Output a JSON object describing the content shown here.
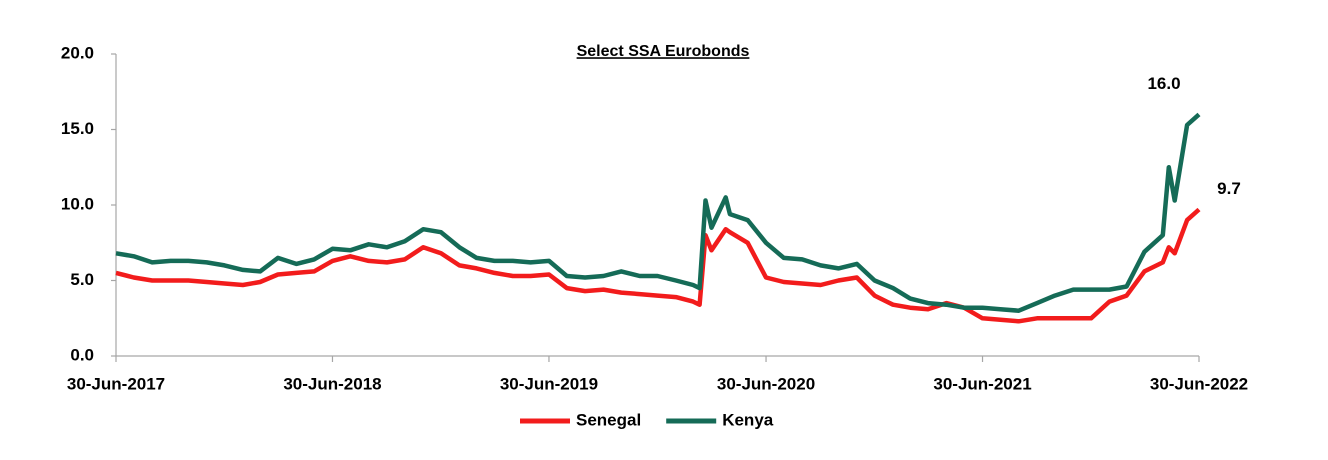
{
  "chart_data": {
    "type": "line",
    "title": "Select SSA Eurobonds",
    "x": [
      "2017-06-30",
      "2017-07-30",
      "2017-08-30",
      "2017-09-30",
      "2017-10-30",
      "2017-11-30",
      "2017-12-30",
      "2018-01-30",
      "2018-02-28",
      "2018-03-30",
      "2018-04-30",
      "2018-05-30",
      "2018-06-30",
      "2018-07-30",
      "2018-08-30",
      "2018-09-30",
      "2018-10-30",
      "2018-11-30",
      "2018-12-30",
      "2019-01-30",
      "2019-02-28",
      "2019-03-30",
      "2019-04-30",
      "2019-05-30",
      "2019-06-30",
      "2019-07-30",
      "2019-08-30",
      "2019-09-30",
      "2019-10-30",
      "2019-11-30",
      "2019-12-30",
      "2020-01-30",
      "2020-02-28",
      "2020-03-10",
      "2020-03-20",
      "2020-03-30",
      "2020-04-23",
      "2020-04-30",
      "2020-05-30",
      "2020-06-30",
      "2020-07-30",
      "2020-08-30",
      "2020-09-30",
      "2020-10-30",
      "2020-11-30",
      "2020-12-30",
      "2021-01-30",
      "2021-02-28",
      "2021-03-30",
      "2021-04-30",
      "2021-05-30",
      "2021-06-30",
      "2021-07-30",
      "2021-08-30",
      "2021-09-30",
      "2021-10-30",
      "2021-11-30",
      "2021-12-30",
      "2022-01-30",
      "2022-02-28",
      "2022-03-30",
      "2022-04-30",
      "2022-05-10",
      "2022-05-20",
      "2022-06-10",
      "2022-06-30"
    ],
    "series": [
      {
        "name": "Senegal",
        "color": "#f21c1c",
        "values": [
          5.5,
          5.2,
          5.0,
          5.0,
          5.0,
          4.9,
          4.8,
          4.7,
          4.9,
          5.4,
          5.5,
          5.6,
          6.3,
          6.6,
          6.3,
          6.2,
          6.4,
          7.2,
          6.8,
          6.0,
          5.8,
          5.5,
          5.3,
          5.3,
          5.4,
          4.5,
          4.3,
          4.4,
          4.2,
          4.1,
          4.0,
          3.9,
          3.6,
          3.4,
          8.0,
          7.0,
          8.4,
          8.2,
          7.5,
          5.2,
          4.9,
          4.8,
          4.7,
          5.0,
          5.2,
          4.0,
          3.4,
          3.2,
          3.1,
          3.5,
          3.2,
          2.5,
          2.4,
          2.3,
          2.5,
          2.5,
          2.5,
          2.5,
          3.6,
          4.0,
          5.6,
          6.2,
          7.2,
          6.8,
          9.0,
          9.7
        ],
        "value_labels": [
          null,
          null,
          null,
          null,
          null,
          null,
          null,
          null,
          null,
          null,
          null,
          null,
          null,
          null,
          null,
          null,
          null,
          null,
          null,
          null,
          null,
          null,
          null,
          null,
          null,
          null,
          null,
          null,
          null,
          null,
          null,
          null,
          null,
          null,
          null,
          null,
          null,
          null,
          null,
          null,
          null,
          null,
          null,
          null,
          null,
          null,
          null,
          null,
          null,
          null,
          null,
          null,
          null,
          null,
          null,
          null,
          null,
          null,
          null,
          null,
          null,
          null,
          null,
          null,
          null,
          "9.7"
        ]
      },
      {
        "name": "Kenya",
        "color": "#156b57",
        "values": [
          6.8,
          6.6,
          6.2,
          6.3,
          6.3,
          6.2,
          6.0,
          5.7,
          5.6,
          6.5,
          6.1,
          6.4,
          7.1,
          7.0,
          7.4,
          7.2,
          7.6,
          8.4,
          8.2,
          7.2,
          6.5,
          6.3,
          6.3,
          6.2,
          6.3,
          5.3,
          5.2,
          5.3,
          5.6,
          5.3,
          5.3,
          5.0,
          4.7,
          4.5,
          10.3,
          8.5,
          10.5,
          9.4,
          9.0,
          7.5,
          6.5,
          6.4,
          6.0,
          5.8,
          6.1,
          5.0,
          4.5,
          3.8,
          3.5,
          3.4,
          3.2,
          3.2,
          3.1,
          3.0,
          3.5,
          4.0,
          4.4,
          4.4,
          4.4,
          4.6,
          6.9,
          8.0,
          12.5,
          10.3,
          15.3,
          16.0
        ],
        "value_labels": [
          null,
          null,
          null,
          null,
          null,
          null,
          null,
          null,
          null,
          null,
          null,
          null,
          null,
          null,
          null,
          null,
          null,
          null,
          null,
          null,
          null,
          null,
          null,
          null,
          null,
          null,
          null,
          null,
          null,
          null,
          null,
          null,
          null,
          null,
          null,
          null,
          null,
          null,
          null,
          null,
          null,
          null,
          null,
          null,
          null,
          null,
          null,
          null,
          null,
          null,
          null,
          null,
          null,
          null,
          null,
          null,
          null,
          null,
          null,
          null,
          null,
          null,
          null,
          null,
          null,
          "16.0"
        ]
      }
    ],
    "xlim": [
      "2017-06-30",
      "2022-06-30"
    ],
    "xticks": [
      {
        "value": "2017-06-30",
        "label": "30-Jun-2017"
      },
      {
        "value": "2018-06-30",
        "label": "30-Jun-2018"
      },
      {
        "value": "2019-06-30",
        "label": "30-Jun-2019"
      },
      {
        "value": "2020-06-30",
        "label": "30-Jun-2020"
      },
      {
        "value": "2021-06-30",
        "label": "30-Jun-2021"
      },
      {
        "value": "2022-06-30",
        "label": "30-Jun-2022"
      }
    ],
    "ylim": [
      0,
      20
    ],
    "yticks": [
      {
        "value": 0,
        "label": "0.0"
      },
      {
        "value": 5,
        "label": "5.0"
      },
      {
        "value": 10,
        "label": "10.0"
      },
      {
        "value": 15,
        "label": "15.0"
      },
      {
        "value": 20,
        "label": "20.0"
      }
    ],
    "grid": false,
    "legend": "bottom"
  }
}
